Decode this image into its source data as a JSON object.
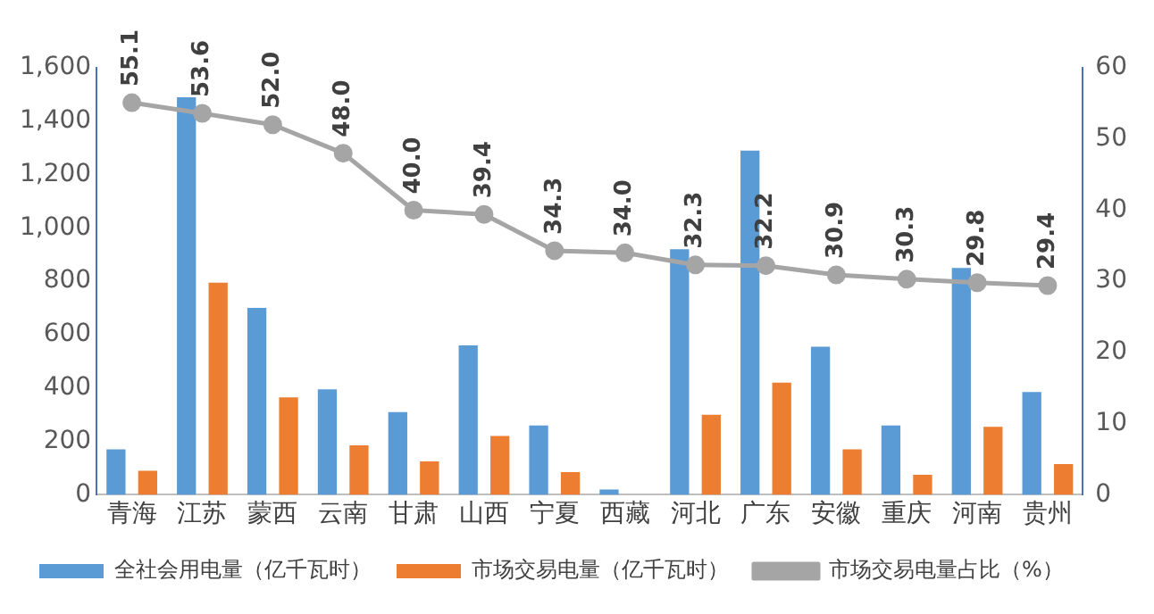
{
  "chart_data": {
    "type": "bar",
    "categories": [
      "青海",
      "江苏",
      "蒙西",
      "云南",
      "甘肃",
      "山西",
      "宁夏",
      "西藏",
      "河北",
      "广东",
      "安徽",
      "重庆",
      "河南",
      "贵州"
    ],
    "series": [
      {
        "name": "全社会用电量（亿千瓦时）",
        "color": "#5b9bd5",
        "values": [
          170,
          1490,
          700,
          395,
          310,
          560,
          260,
          20,
          920,
          1290,
          555,
          260,
          850,
          385
        ]
      },
      {
        "name": "市场交易电量（亿千瓦时）",
        "color": "#ed7d31",
        "values": [
          90,
          795,
          365,
          185,
          125,
          220,
          85,
          null,
          300,
          420,
          170,
          75,
          255,
          115
        ]
      },
      {
        "name": "市场交易电量占比（%）",
        "type": "line",
        "axis": "y2",
        "color": "#a5a5a5",
        "marker": "circle",
        "value_labels": [
          "55.1",
          "53.6",
          "52.0",
          "48.0",
          "40.0",
          "39.4",
          "34.3",
          "34.0",
          "32.3",
          "32.2",
          "30.9",
          "30.3",
          "29.8",
          "29.4"
        ],
        "values": [
          55.1,
          53.6,
          52.0,
          48.0,
          40.0,
          39.4,
          34.3,
          34.0,
          32.3,
          32.2,
          30.9,
          30.3,
          29.8,
          29.4
        ]
      }
    ],
    "ylim": [
      0,
      1600
    ],
    "yticks": [
      0,
      {
        "value": 200,
        "label": "200"
      },
      {
        "value": 400,
        "label": "400"
      },
      {
        "value": 600,
        "label": "600"
      },
      {
        "value": 800,
        "label": "800"
      },
      {
        "value": 1000,
        "label": "1,000"
      },
      {
        "value": 1200,
        "label": "1,200"
      },
      {
        "value": 1400,
        "label": "1,400"
      },
      {
        "value": 1600,
        "label": "1,600"
      }
    ],
    "y2lim": [
      0,
      60
    ],
    "y2ticks": [
      0,
      10,
      20,
      30,
      40,
      50,
      60
    ],
    "grid": false,
    "legend": "bottom"
  }
}
